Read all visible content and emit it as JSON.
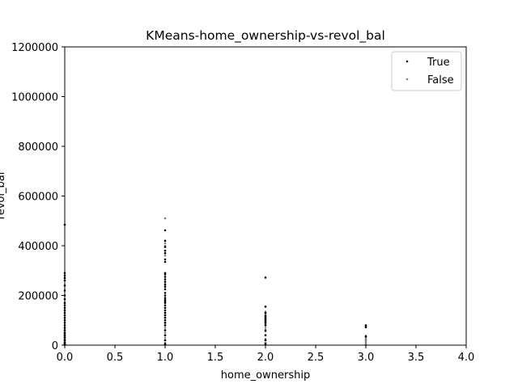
{
  "chart_data": {
    "type": "scatter",
    "title": "KMeans-home_ownership-vs-revol_bal",
    "xlabel": "home_ownership",
    "ylabel": "revol_bal",
    "xlim": [
      0,
      4
    ],
    "ylim": [
      0,
      1200000
    ],
    "x_ticks": [
      "0.0",
      "0.5",
      "1.0",
      "1.5",
      "2.0",
      "2.5",
      "3.0",
      "3.5",
      "4.0"
    ],
    "y_ticks": [
      "0",
      "200000",
      "400000",
      "600000",
      "800000",
      "1000000",
      "1200000"
    ],
    "x_tick_values": [
      0,
      0.5,
      1,
      1.5,
      2,
      2.5,
      3,
      3.5,
      4
    ],
    "y_tick_values": [
      0,
      200000,
      400000,
      600000,
      800000,
      1000000,
      1200000
    ],
    "grid": false,
    "legend_position": "top-right",
    "series": [
      {
        "name": "True",
        "color": "#000000",
        "x": [
          0,
          0,
          0,
          0,
          0,
          0,
          0,
          0,
          0,
          0,
          0,
          0,
          0,
          0,
          0,
          0,
          0,
          0,
          0,
          0,
          0,
          0,
          0,
          0,
          0,
          0,
          0,
          0,
          1,
          1,
          1,
          1,
          1,
          1,
          1,
          1,
          1,
          1,
          1,
          1,
          1,
          1,
          1,
          1,
          1,
          1,
          1,
          1,
          1,
          1,
          1,
          1,
          1,
          1,
          1,
          1,
          1,
          1,
          1,
          1,
          1,
          1,
          2,
          2,
          2,
          2,
          2,
          2,
          2,
          2,
          2,
          2,
          2,
          2,
          2,
          3,
          3,
          3,
          3
        ],
        "y": [
          485000,
          290000,
          280000,
          270000,
          260000,
          240000,
          220000,
          200000,
          185000,
          170000,
          160000,
          150000,
          140000,
          130000,
          120000,
          110000,
          100000,
          90000,
          80000,
          70000,
          60000,
          50000,
          40000,
          30000,
          20000,
          10000,
          5000,
          2000,
          462000,
          420000,
          395000,
          380000,
          370000,
          345000,
          335000,
          290000,
          285000,
          275000,
          265000,
          255000,
          245000,
          235000,
          225000,
          210000,
          200000,
          190000,
          182000,
          176000,
          170000,
          160000,
          150000,
          140000,
          130000,
          120000,
          110000,
          100000,
          90000,
          80000,
          60000,
          40000,
          20000,
          5000,
          272000,
          155000,
          130000,
          118000,
          110000,
          104000,
          98000,
          90000,
          80000,
          60000,
          40000,
          20000,
          5000,
          80000,
          75000,
          72000,
          35000
        ]
      },
      {
        "name": "False",
        "color": "#808080",
        "x": [
          0,
          0,
          0,
          0,
          0,
          0,
          0,
          0,
          0,
          0,
          0,
          0,
          0,
          0,
          1,
          1,
          1,
          1,
          1,
          1,
          1,
          1,
          1,
          1,
          1,
          1,
          1,
          1,
          1,
          1,
          1,
          1,
          1,
          1,
          1,
          1,
          2,
          2,
          2,
          2,
          2,
          2,
          2,
          2,
          2,
          2,
          2,
          2,
          3,
          3,
          3,
          3,
          3,
          3,
          3,
          3
        ],
        "y": [
          70000,
          60000,
          50000,
          45000,
          40000,
          35000,
          30000,
          25000,
          20000,
          15000,
          10000,
          6000,
          3000,
          1000,
          510000,
          410000,
          400000,
          360000,
          240000,
          170000,
          150000,
          140000,
          130000,
          120000,
          110000,
          100000,
          90000,
          80000,
          70000,
          60000,
          50000,
          40000,
          30000,
          20000,
          10000,
          2000,
          135000,
          125000,
          115000,
          105000,
          95000,
          85000,
          70000,
          55000,
          40000,
          25000,
          10000,
          2000,
          38000,
          32000,
          28000,
          22000,
          16000,
          10000,
          5000,
          1000
        ]
      }
    ]
  }
}
